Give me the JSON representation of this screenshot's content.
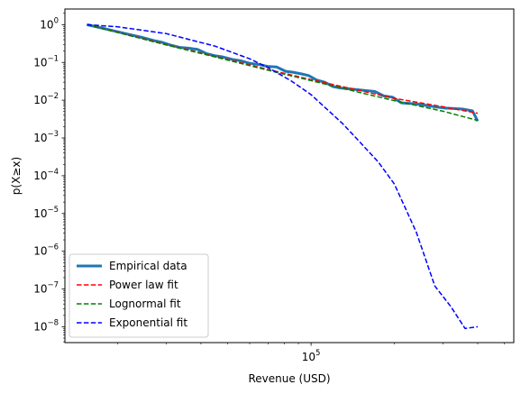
{
  "chart_data": {
    "type": "line",
    "xlabel": "Revenue (USD)",
    "ylabel": "p(X≥x)",
    "x_scale": "log",
    "y_scale": "log",
    "xlim": [
      12900,
      540000
    ],
    "ylim": [
      3.8e-09,
      2.6
    ],
    "x_ticks": [
      {
        "value": 100000,
        "mantissa": "10",
        "exp": "5"
      }
    ],
    "y_ticks": [
      {
        "value": 1,
        "mantissa": "10",
        "exp": "0"
      },
      {
        "value": 0.1,
        "mantissa": "10",
        "exp": "−1"
      },
      {
        "value": 0.01,
        "mantissa": "10",
        "exp": "−2"
      },
      {
        "value": 0.001,
        "mantissa": "10",
        "exp": "−3"
      },
      {
        "value": 0.0001,
        "mantissa": "10",
        "exp": "−4"
      },
      {
        "value": 1e-05,
        "mantissa": "10",
        "exp": "−5"
      },
      {
        "value": 1e-06,
        "mantissa": "10",
        "exp": "−6"
      },
      {
        "value": 1e-07,
        "mantissa": "10",
        "exp": "−7"
      },
      {
        "value": 1e-08,
        "mantissa": "10",
        "exp": "−8"
      }
    ],
    "grid": false,
    "legend_position": "lower-left",
    "series": [
      {
        "name": "Empirical data",
        "color": "#1f77b4",
        "style": "solid",
        "x": [
          15500,
          17500,
          20000,
          22000,
          24500,
          27000,
          29000,
          31000,
          33500,
          36000,
          39000,
          42000,
          45000,
          48000,
          52000,
          56000,
          60000,
          65000,
          70000,
          75000,
          81000,
          86000,
          92000,
          98000,
          105000,
          112000,
          120000,
          128000,
          137000,
          147000,
          158000,
          170000,
          183000,
          197000,
          212000,
          228000,
          245000,
          263000,
          283000,
          305000,
          328000,
          355000,
          383000,
          400000
        ],
        "y": [
          1.0,
          0.82,
          0.65,
          0.55,
          0.46,
          0.38,
          0.34,
          0.29,
          0.25,
          0.24,
          0.22,
          0.17,
          0.15,
          0.14,
          0.12,
          0.11,
          0.095,
          0.088,
          0.078,
          0.076,
          0.058,
          0.055,
          0.05,
          0.045,
          0.034,
          0.03,
          0.023,
          0.021,
          0.02,
          0.019,
          0.018,
          0.017,
          0.013,
          0.012,
          0.0085,
          0.0082,
          0.0078,
          0.0072,
          0.0066,
          0.0062,
          0.006,
          0.0058,
          0.0052,
          0.0028
        ]
      },
      {
        "name": "Power law fit",
        "color": "#ff0000",
        "style": "dashed",
        "x": [
          15500,
          20000,
          30000,
          45000,
          70000,
          100000,
          150000,
          200000,
          300000,
          400000
        ],
        "y": [
          1.0,
          0.63,
          0.3,
          0.145,
          0.065,
          0.035,
          0.018,
          0.0112,
          0.0067,
          0.0045
        ]
      },
      {
        "name": "Lognormal fit",
        "color": "#008000",
        "style": "dashed",
        "x": [
          15500,
          20000,
          30000,
          45000,
          70000,
          100000,
          150000,
          200000,
          300000,
          400000
        ],
        "y": [
          1.0,
          0.62,
          0.29,
          0.14,
          0.062,
          0.033,
          0.016,
          0.0097,
          0.0051,
          0.0029
        ]
      },
      {
        "name": "Exponential fit",
        "color": "#0000ff",
        "style": "dashed",
        "x": [
          15500,
          20000,
          30000,
          45000,
          60000,
          70000,
          85000,
          100000,
          130000,
          150000,
          175000,
          200000,
          240000,
          280000,
          320000,
          360000,
          400000
        ],
        "y": [
          1.0,
          0.88,
          0.58,
          0.27,
          0.125,
          0.073,
          0.032,
          0.014,
          0.0024,
          0.00078,
          0.00023,
          6e-05,
          3.2e-06,
          1.2e-07,
          3.4e-08,
          9e-09,
          1e-08
        ]
      }
    ]
  }
}
